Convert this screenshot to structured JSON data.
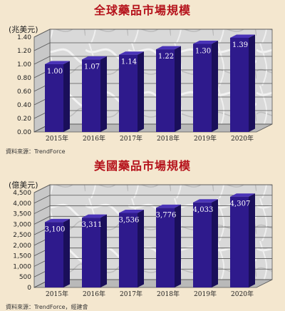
{
  "charts": [
    {
      "title": "全球藥品市場規模",
      "unit_label": "(兆美元)",
      "source": "資料來源：TrendForce"
    },
    {
      "title": "美國藥品市場規模",
      "unit_label": "(億美元)",
      "source": "資料來源：TrendForce，經建會"
    }
  ],
  "colors": {
    "bar_front": "#2e1a8c",
    "bar_side": "#1a0f5a",
    "bar_top": "#4a34b8",
    "title": "#b5121b",
    "background": "#f4e7cf"
  },
  "chart_data": [
    {
      "type": "bar",
      "title": "全球藥品市場規模",
      "ylabel": "(兆美元)",
      "categories": [
        "2015年",
        "2016年",
        "2017年",
        "2018年",
        "2019年",
        "2020年"
      ],
      "values": [
        1.0,
        1.07,
        1.14,
        1.22,
        1.3,
        1.39
      ],
      "data_labels": [
        "1.00",
        "1.07",
        "1.14",
        "1.22",
        "1.30",
        "1.39"
      ],
      "ylim": [
        0,
        1.4
      ],
      "yticks": [
        "0.00",
        "0.20",
        "0.40",
        "0.60",
        "0.80",
        "1.00",
        "1.20",
        "1.40"
      ],
      "grid": true,
      "style": "3d"
    },
    {
      "type": "bar",
      "title": "美國藥品市場規模",
      "ylabel": "(億美元)",
      "categories": [
        "2015年",
        "2016年",
        "2017年",
        "2018年",
        "2019年",
        "2020年"
      ],
      "values": [
        3100,
        3311,
        3536,
        3776,
        4033,
        4307
      ],
      "data_labels": [
        "3,100",
        "3,311",
        "3,536",
        "3,776",
        "4,033",
        "4,307"
      ],
      "ylim": [
        0,
        4500
      ],
      "yticks": [
        "0",
        "500",
        "1,000",
        "1,500",
        "2,000",
        "2,500",
        "3,000",
        "3,500",
        "4,000",
        "4,500"
      ],
      "grid": true,
      "style": "3d"
    }
  ]
}
